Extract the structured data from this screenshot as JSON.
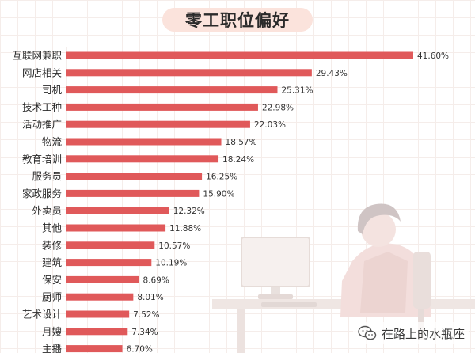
{
  "chart_data": {
    "type": "bar",
    "orientation": "horizontal",
    "title": "零工职位偏好",
    "categories": [
      "互联网兼职",
      "网店相关",
      "司机",
      "技术工种",
      "活动推广",
      "物流",
      "教育培训",
      "服务员",
      "家政服务",
      "外卖员",
      "其他",
      "装修",
      "建筑",
      "保安",
      "厨师",
      "艺术设计",
      "月嫂",
      "主播"
    ],
    "values": [
      41.6,
      29.43,
      25.31,
      22.98,
      22.03,
      18.57,
      18.24,
      16.25,
      15.9,
      12.32,
      11.88,
      10.57,
      10.19,
      8.69,
      8.01,
      7.52,
      7.34,
      6.7
    ],
    "value_labels": [
      "41.60%",
      "29.43%",
      "25.31%",
      "22.98%",
      "22.03%",
      "18.57%",
      "18.24%",
      "16.25%",
      "15.90%",
      "12.32%",
      "11.88%",
      "10.57%",
      "10.19%",
      "8.69%",
      "8.01%",
      "7.52%",
      "7.34%",
      "6.70%"
    ],
    "xlim": [
      0,
      45
    ],
    "bar_color": "#e0595a",
    "grid": true,
    "legend": "none"
  },
  "watermark": {
    "text": "在路上的水瓶座",
    "icon": "wechat-icon"
  },
  "colors": {
    "accent": "#e0595a",
    "title_bg": "#fbe3dc"
  }
}
